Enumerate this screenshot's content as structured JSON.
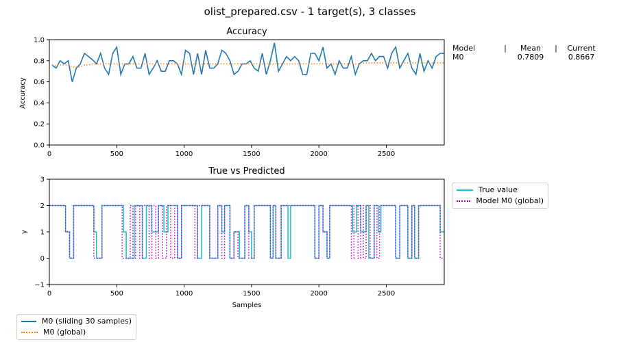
{
  "figure_title": "olist_prepared.csv - 1 target(s), 3 classes",
  "colors": {
    "sliding": "#1f77b4",
    "global": "#ff7f0e",
    "true_value": "#17becf",
    "model_pred": "#bf00bf"
  },
  "summary": {
    "header": {
      "model": "Model",
      "sep": "|",
      "mean": "Mean",
      "current": "Current"
    },
    "rows": [
      {
        "model": "M0",
        "mean": "0.7809",
        "current": "0.8667"
      }
    ]
  },
  "chart_data": [
    {
      "type": "line",
      "title": "Accuracy",
      "xlabel": "",
      "ylabel": "Accuracy",
      "xlim": [
        0,
        2930
      ],
      "ylim": [
        0.0,
        1.0
      ],
      "xticks": [
        0,
        500,
        1000,
        1500,
        2000,
        2500
      ],
      "yticks": [
        0.0,
        0.2,
        0.4,
        0.6,
        0.8,
        1.0
      ],
      "ytick_labels": [
        "0.0",
        "0.2",
        "0.4",
        "0.6",
        "0.8",
        "1.0"
      ],
      "grid": false,
      "legend_position": "below-left",
      "x": [
        20,
        50,
        80,
        110,
        140,
        170,
        200,
        230,
        260,
        290,
        320,
        350,
        380,
        410,
        440,
        470,
        500,
        530,
        560,
        590,
        620,
        650,
        680,
        710,
        740,
        770,
        800,
        830,
        860,
        890,
        920,
        950,
        980,
        1010,
        1040,
        1070,
        1100,
        1130,
        1160,
        1190,
        1220,
        1250,
        1280,
        1310,
        1340,
        1370,
        1400,
        1430,
        1460,
        1490,
        1520,
        1550,
        1580,
        1610,
        1640,
        1670,
        1700,
        1730,
        1760,
        1790,
        1820,
        1850,
        1880,
        1910,
        1940,
        1970,
        2000,
        2030,
        2060,
        2090,
        2120,
        2150,
        2180,
        2210,
        2240,
        2270,
        2300,
        2330,
        2360,
        2390,
        2420,
        2450,
        2480,
        2510,
        2540,
        2570,
        2600,
        2630,
        2660,
        2690,
        2720,
        2750,
        2780,
        2810,
        2840,
        2870,
        2900,
        2930
      ],
      "series": [
        {
          "name": "M0  (sliding 30 samples)",
          "style": "solid",
          "values": [
            0.76,
            0.73,
            0.8,
            0.77,
            0.8,
            0.6,
            0.73,
            0.77,
            0.87,
            0.84,
            0.81,
            0.77,
            0.87,
            0.73,
            0.67,
            0.87,
            0.93,
            0.67,
            0.77,
            0.77,
            0.84,
            0.73,
            0.73,
            0.87,
            0.67,
            0.73,
            0.8,
            0.7,
            0.7,
            0.8,
            0.8,
            0.77,
            0.67,
            0.9,
            0.87,
            0.67,
            0.87,
            0.67,
            0.9,
            0.73,
            0.73,
            0.77,
            0.9,
            0.87,
            0.8,
            0.67,
            0.7,
            0.77,
            0.77,
            0.8,
            0.73,
            0.7,
            0.87,
            0.67,
            0.8,
            0.97,
            0.7,
            0.77,
            0.84,
            0.8,
            0.84,
            0.8,
            0.67,
            0.67,
            0.87,
            0.87,
            0.8,
            0.93,
            0.73,
            0.77,
            0.67,
            0.8,
            0.73,
            0.73,
            0.84,
            0.67,
            0.77,
            0.8,
            0.8,
            0.87,
            0.8,
            0.84,
            0.84,
            0.73,
            0.87,
            0.93,
            0.73,
            0.8,
            0.87,
            0.73,
            0.67,
            0.87,
            0.7,
            0.8,
            0.73,
            0.84,
            0.87,
            0.87
          ]
        },
        {
          "name": "M0 (global)",
          "style": "dotted",
          "values": [
            0.76,
            0.75,
            0.76,
            0.76,
            0.76,
            0.74,
            0.74,
            0.74,
            0.76,
            0.76,
            0.77,
            0.77,
            0.77,
            0.77,
            0.77,
            0.77,
            0.77,
            0.77,
            0.77,
            0.77,
            0.77,
            0.77,
            0.77,
            0.77,
            0.77,
            0.77,
            0.77,
            0.77,
            0.77,
            0.77,
            0.77,
            0.77,
            0.77,
            0.77,
            0.77,
            0.77,
            0.77,
            0.77,
            0.77,
            0.77,
            0.77,
            0.77,
            0.77,
            0.77,
            0.77,
            0.77,
            0.77,
            0.77,
            0.77,
            0.77,
            0.77,
            0.77,
            0.77,
            0.77,
            0.77,
            0.77,
            0.77,
            0.77,
            0.77,
            0.77,
            0.77,
            0.77,
            0.77,
            0.77,
            0.77,
            0.77,
            0.77,
            0.77,
            0.77,
            0.77,
            0.77,
            0.77,
            0.77,
            0.77,
            0.77,
            0.77,
            0.77,
            0.78,
            0.78,
            0.78,
            0.78,
            0.78,
            0.78,
            0.78,
            0.78,
            0.78,
            0.78,
            0.78,
            0.78,
            0.78,
            0.78,
            0.78,
            0.78,
            0.78,
            0.78,
            0.78,
            0.78,
            0.78
          ]
        }
      ]
    },
    {
      "type": "line",
      "title": "True vs Predicted",
      "xlabel": "Samples",
      "ylabel": "y",
      "xlim": [
        0,
        2930
      ],
      "ylim": [
        -1,
        3
      ],
      "xticks": [
        0,
        500,
        1000,
        1500,
        2000,
        2500
      ],
      "yticks": [
        -1,
        0,
        1,
        2,
        3
      ],
      "ytick_labels": [
        "−1",
        "0",
        "1",
        "2",
        "3"
      ],
      "grid": false,
      "legend_position": "right",
      "series": [
        {
          "name": "True value",
          "style": "step-solid",
          "segments": [
            [
              0,
              2
            ],
            [
              120,
              1
            ],
            [
              150,
              0
            ],
            [
              180,
              2
            ],
            [
              330,
              1
            ],
            [
              350,
              0
            ],
            [
              390,
              2
            ],
            [
              550,
              1
            ],
            [
              570,
              0
            ],
            [
              630,
              2
            ],
            [
              690,
              0
            ],
            [
              720,
              2
            ],
            [
              760,
              1
            ],
            [
              810,
              2
            ],
            [
              850,
              1
            ],
            [
              880,
              2
            ],
            [
              950,
              0
            ],
            [
              980,
              2
            ],
            [
              1100,
              0
            ],
            [
              1130,
              2
            ],
            [
              1190,
              0
            ],
            [
              1250,
              2
            ],
            [
              1280,
              1
            ],
            [
              1300,
              2
            ],
            [
              1340,
              0
            ],
            [
              1370,
              1
            ],
            [
              1410,
              0
            ],
            [
              1450,
              2
            ],
            [
              1480,
              1
            ],
            [
              1500,
              0
            ],
            [
              1520,
              2
            ],
            [
              1640,
              0
            ],
            [
              1660,
              2
            ],
            [
              1680,
              0
            ],
            [
              1720,
              2
            ],
            [
              1770,
              0
            ],
            [
              1790,
              2
            ],
            [
              1970,
              0
            ],
            [
              2000,
              2
            ],
            [
              2030,
              1
            ],
            [
              2060,
              0
            ],
            [
              2080,
              2
            ],
            [
              2250,
              1
            ],
            [
              2280,
              2
            ],
            [
              2310,
              1
            ],
            [
              2350,
              2
            ],
            [
              2370,
              0
            ],
            [
              2410,
              2
            ],
            [
              2440,
              1
            ],
            [
              2460,
              2
            ],
            [
              2570,
              0
            ],
            [
              2600,
              2
            ],
            [
              2660,
              0
            ],
            [
              2690,
              2
            ],
            [
              2710,
              0
            ],
            [
              2740,
              2
            ],
            [
              2900,
              1
            ],
            [
              2930,
              1
            ]
          ]
        },
        {
          "name": "Model M0 (global)",
          "style": "step-dotted",
          "segments": [
            [
              0,
              2
            ],
            [
              120,
              1
            ],
            [
              150,
              0
            ],
            [
              180,
              2
            ],
            [
              330,
              0
            ],
            [
              350,
              0
            ],
            [
              390,
              2
            ],
            [
              540,
              0
            ],
            [
              600,
              2
            ],
            [
              620,
              0
            ],
            [
              640,
              2
            ],
            [
              670,
              0
            ],
            [
              690,
              2
            ],
            [
              740,
              0
            ],
            [
              760,
              2
            ],
            [
              790,
              0
            ],
            [
              810,
              2
            ],
            [
              840,
              0
            ],
            [
              870,
              2
            ],
            [
              900,
              0
            ],
            [
              930,
              2
            ],
            [
              950,
              0
            ],
            [
              980,
              2
            ],
            [
              1080,
              0
            ],
            [
              1100,
              2
            ],
            [
              1190,
              0
            ],
            [
              1250,
              2
            ],
            [
              1280,
              0
            ],
            [
              1300,
              2
            ],
            [
              1340,
              0
            ],
            [
              1370,
              1
            ],
            [
              1400,
              0
            ],
            [
              1450,
              2
            ],
            [
              1480,
              0
            ],
            [
              1520,
              2
            ],
            [
              1640,
              0
            ],
            [
              1660,
              2
            ],
            [
              1680,
              0
            ],
            [
              1720,
              2
            ],
            [
              1790,
              2
            ],
            [
              1970,
              0
            ],
            [
              2000,
              2
            ],
            [
              2030,
              1
            ],
            [
              2060,
              0
            ],
            [
              2080,
              2
            ],
            [
              2240,
              0
            ],
            [
              2260,
              2
            ],
            [
              2290,
              0
            ],
            [
              2310,
              2
            ],
            [
              2330,
              0
            ],
            [
              2350,
              2
            ],
            [
              2380,
              0
            ],
            [
              2410,
              2
            ],
            [
              2430,
              0
            ],
            [
              2450,
              2
            ],
            [
              2570,
              0
            ],
            [
              2600,
              2
            ],
            [
              2660,
              0
            ],
            [
              2690,
              2
            ],
            [
              2710,
              0
            ],
            [
              2740,
              2
            ],
            [
              2900,
              0
            ],
            [
              2930,
              0
            ]
          ]
        }
      ]
    }
  ],
  "legends": {
    "bottom": [
      "M0  (sliding 30 samples)",
      "M0 (global)"
    ],
    "right": [
      "True value",
      "Model M0 (global)"
    ]
  }
}
